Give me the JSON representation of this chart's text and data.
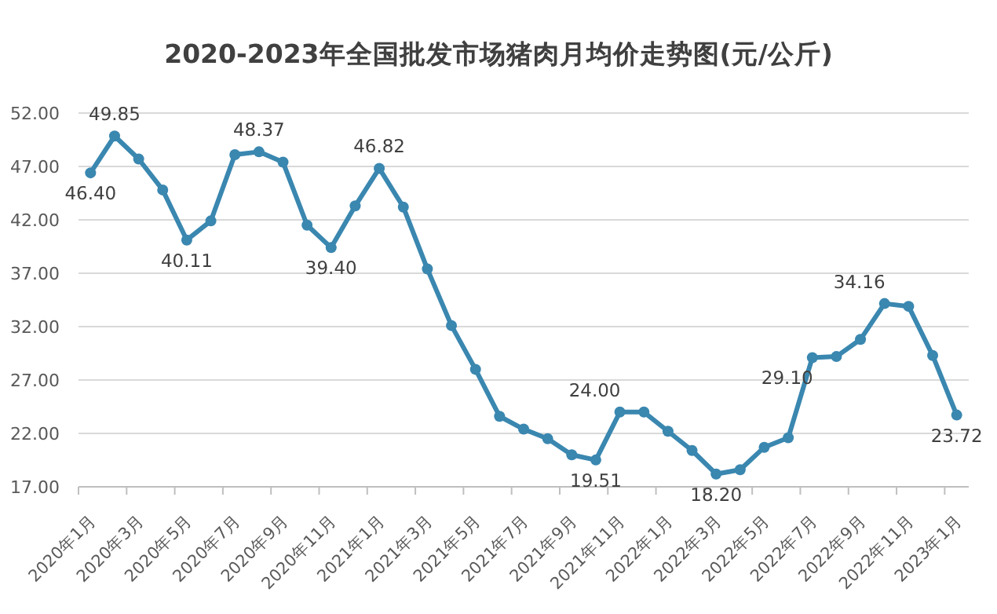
{
  "chart_data": {
    "type": "line",
    "title": "2020-2023年全国批发市场猪肉月均价走势图(元/公斤)",
    "categories": [
      "2020年1月",
      null,
      "2020年3月",
      null,
      "2020年5月",
      null,
      "2020年7月",
      null,
      "2020年9月",
      null,
      "2020年11月",
      null,
      "2021年1月",
      null,
      "2021年3月",
      null,
      "2021年5月",
      null,
      "2021年7月",
      null,
      "2021年9月",
      null,
      "2021年11月",
      null,
      "2022年1月",
      null,
      "2022年3月",
      null,
      "2022年5月",
      null,
      "2022年7月",
      null,
      "2022年9月",
      null,
      "2022年11月",
      null,
      "2023年1月"
    ],
    "series": [
      {
        "color": "#3a87b0",
        "values": [
          46.4,
          49.85,
          47.7,
          44.8,
          40.11,
          41.9,
          48.1,
          48.37,
          47.4,
          41.5,
          39.4,
          43.3,
          46.82,
          43.2,
          37.4,
          32.1,
          28.0,
          23.6,
          22.4,
          21.5,
          20.0,
          19.51,
          24.0,
          24.0,
          22.2,
          20.4,
          18.2,
          18.6,
          20.7,
          21.6,
          29.1,
          29.2,
          30.8,
          34.16,
          33.9,
          29.3,
          23.72
        ],
        "value_labels": [
          "46.40",
          "49.85",
          null,
          null,
          "40.11",
          null,
          null,
          "48.37",
          null,
          null,
          "39.40",
          null,
          "46.82",
          null,
          null,
          null,
          null,
          null,
          null,
          null,
          null,
          "19.51",
          "24.00",
          null,
          null,
          null,
          "18.20",
          null,
          null,
          null,
          "29.10",
          null,
          null,
          "34.16",
          null,
          null,
          "23.72"
        ]
      }
    ],
    "ylim": [
      17,
      52
    ],
    "yticks": [
      {
        "value": 17,
        "label": "17.00"
      },
      {
        "value": 22,
        "label": "22.00"
      },
      {
        "value": 27,
        "label": "27.00"
      },
      {
        "value": 32,
        "label": "32.00"
      },
      {
        "value": 37,
        "label": "37.00"
      },
      {
        "value": 42,
        "label": "42.00"
      },
      {
        "value": 47,
        "label": "47.00"
      },
      {
        "value": 52,
        "label": "52.00"
      }
    ],
    "grid": "y",
    "marker": "circle",
    "line_style": "solid"
  }
}
